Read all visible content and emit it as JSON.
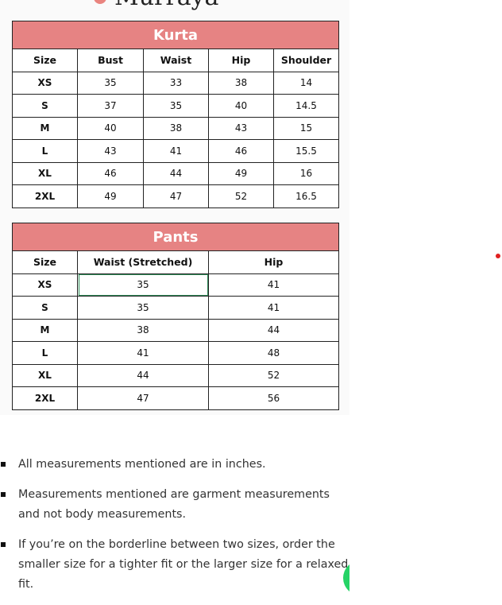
{
  "logo": {
    "text": "Murraya",
    "color": "#e9847f"
  },
  "kurta": {
    "title": "Kurta",
    "headers": [
      "Size",
      "Bust",
      "Waist",
      "Hip",
      "Shoulder"
    ],
    "rows": [
      [
        "XS",
        "35",
        "33",
        "38",
        "14"
      ],
      [
        "S",
        "37",
        "35",
        "40",
        "14.5"
      ],
      [
        "M",
        "40",
        "38",
        "43",
        "15"
      ],
      [
        "L",
        "43",
        "41",
        "46",
        "15.5"
      ],
      [
        "XL",
        "46",
        "44",
        "49",
        "16"
      ],
      [
        "2XL",
        "49",
        "47",
        "52",
        "16.5"
      ]
    ]
  },
  "pants": {
    "title": "Pants",
    "headers": [
      "Size",
      "Waist (Stretched)",
      "Hip"
    ],
    "rows": [
      [
        "XS",
        "35",
        "41"
      ],
      [
        "S",
        "35",
        "41"
      ],
      [
        "M",
        "38",
        "44"
      ],
      [
        "L",
        "41",
        "48"
      ],
      [
        "XL",
        "44",
        "52"
      ],
      [
        "2XL",
        "47",
        "56"
      ]
    ]
  },
  "notes": [
    "All measurements mentioned are in inches.",
    "Measurements mentioned are garment measurements and not body measurements.",
    "If you’re on the borderline between two sizes, order the smaller size for a tighter fit or the larger size for a relaxed fit."
  ],
  "colors": {
    "header": "#e68383",
    "whatsapp": "#25d366",
    "dot": "#e02020"
  }
}
